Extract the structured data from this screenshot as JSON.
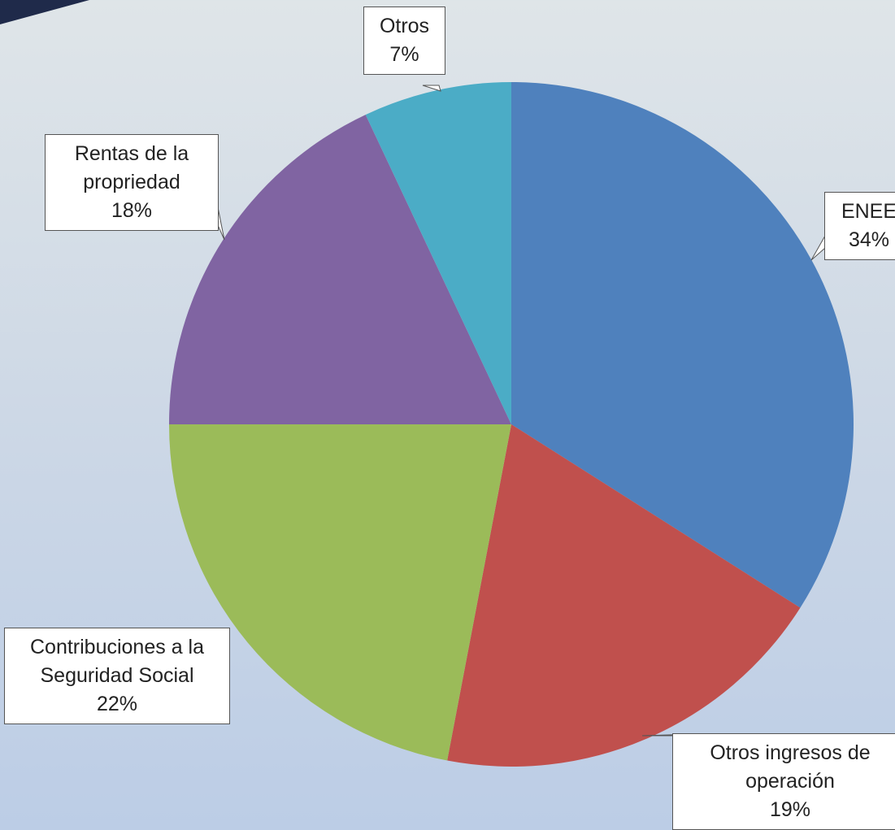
{
  "chart_data": {
    "type": "pie",
    "categories": [
      "ENEE",
      "Otros ingresos de operación",
      "Contribuciones a la Seguridad Social",
      "Rentas de la propriedad",
      "Otros"
    ],
    "values": [
      34,
      19,
      22,
      18,
      7
    ],
    "value_labels": [
      "34%",
      "19%",
      "22%",
      "18%",
      "7%"
    ],
    "colors": [
      "#4f81bd",
      "#c0504d",
      "#9bbb59",
      "#8064a2",
      "#4bacc6"
    ],
    "start_angle": "top",
    "direction": "clockwise"
  }
}
